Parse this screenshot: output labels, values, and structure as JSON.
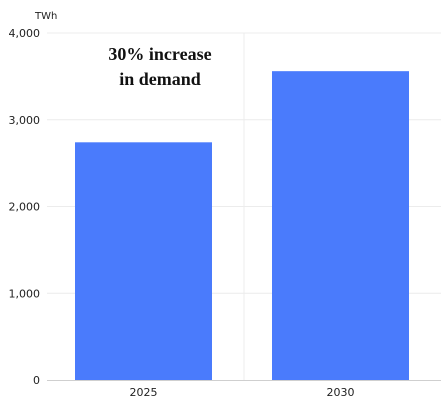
{
  "chart_data": {
    "type": "bar",
    "title": "",
    "unit_label": "TWh",
    "xlabel": "",
    "ylabel": "",
    "categories": [
      "2025",
      "2030"
    ],
    "values": [
      2740,
      3560
    ],
    "ylim": [
      0,
      4000
    ],
    "yticks": [
      0,
      1000,
      2000,
      3000,
      4000
    ],
    "ytick_labels": [
      "0",
      "1,000",
      "2,000",
      "3,000",
      "4,000"
    ],
    "annotation": [
      "30% increase",
      "in demand"
    ],
    "bar_color": "#4a7bfc",
    "grid": true,
    "legend": "none"
  }
}
